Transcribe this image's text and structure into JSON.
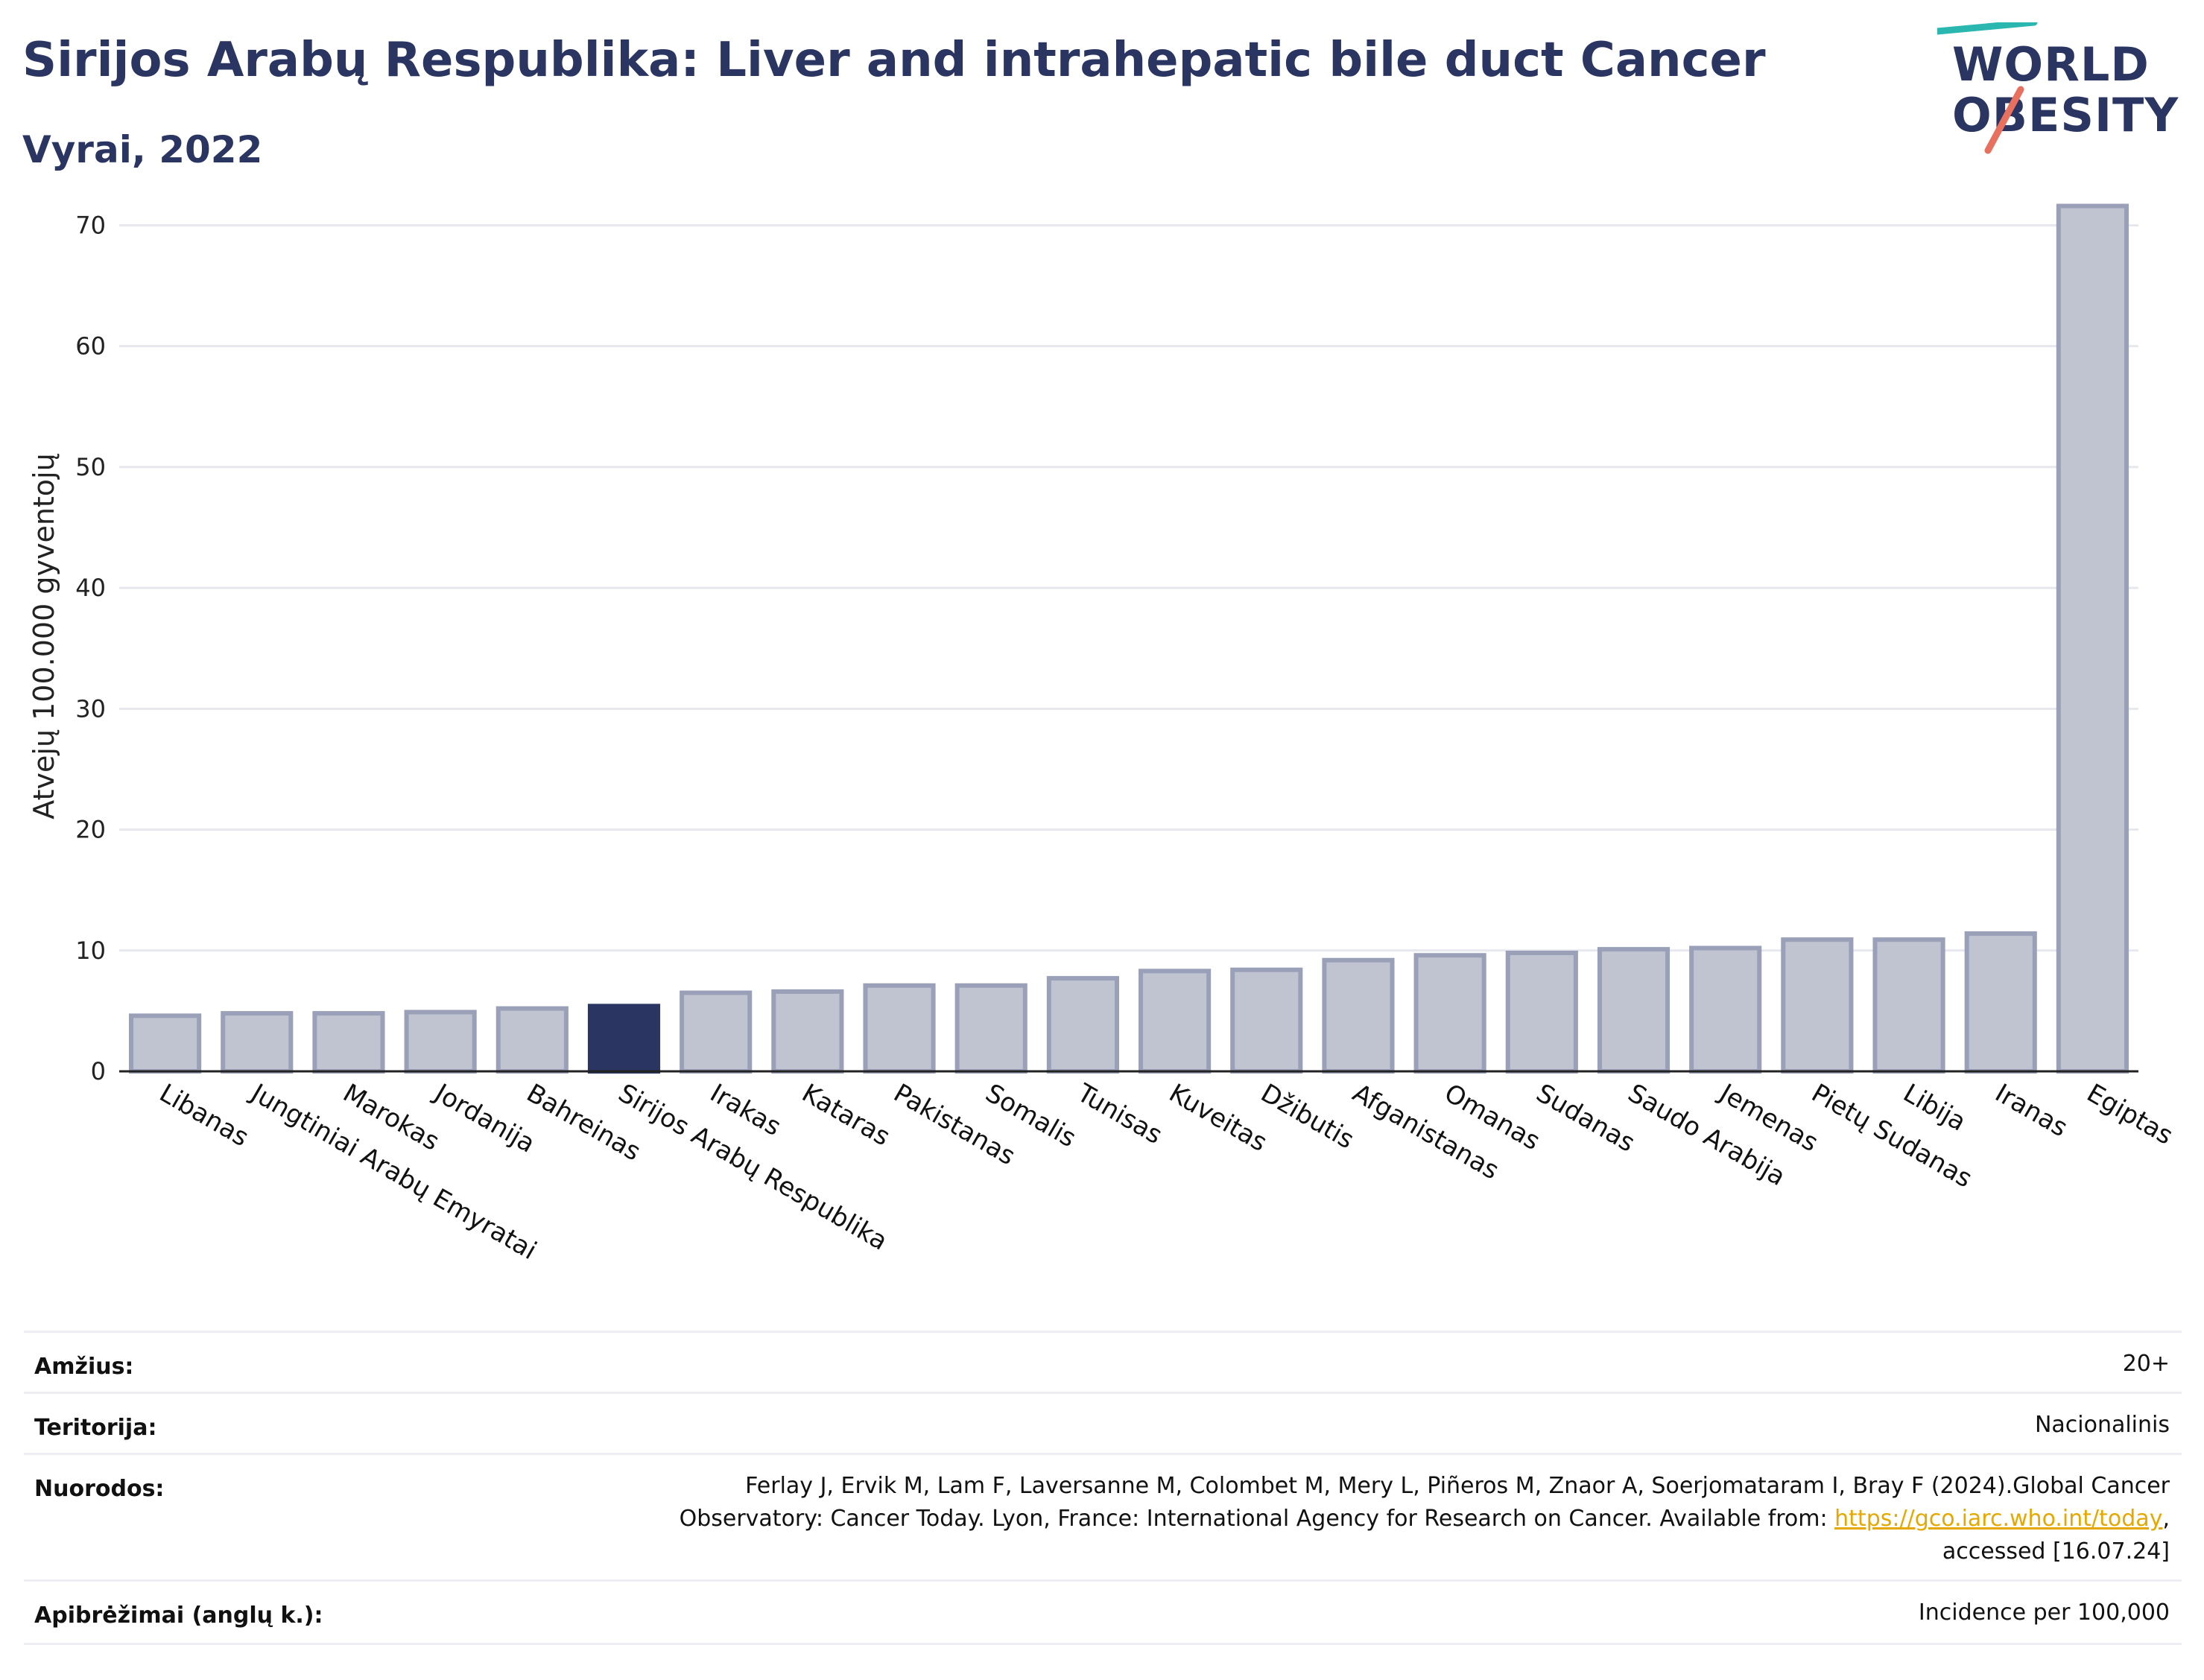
{
  "title": "Sirijos Arabų Respublika: Liver and intrahepatic bile duct Cancer",
  "subtitle": "Vyrai, 2022",
  "logo": {
    "line1": "WORLD",
    "line2": "OBESITY"
  },
  "colors": {
    "highlight": "#2a3561",
    "bar": "#c0c3d0",
    "bar_edge": "#9aa0b8",
    "teal": "#2ab7b0",
    "coral": "#e8705f"
  },
  "chart_data": {
    "type": "bar",
    "ylabel": "Atvejų 100.000 gyventojų",
    "ylim": [
      0,
      72
    ],
    "yticks": [
      0,
      10,
      20,
      30,
      40,
      50,
      60,
      70
    ],
    "grid": true,
    "highlight": "Sirijos Arabų Respublika",
    "categories": [
      "Libanas",
      "Jungtiniai Arabų Emyratai",
      "Marokas",
      "Jordanija",
      "Bahreinas",
      "Sirijos Arabų Respublika",
      "Irakas",
      "Kataras",
      "Pakistanas",
      "Somalis",
      "Tunisas",
      "Kuveitas",
      "Džibutis",
      "Afganistanas",
      "Omanas",
      "Sudanas",
      "Saudo Arabija",
      "Jemenas",
      "Pietų Sudanas",
      "Libija",
      "Iranas",
      "Egiptas"
    ],
    "values": [
      4.6,
      4.8,
      4.8,
      4.9,
      5.2,
      5.4,
      6.5,
      6.6,
      7.1,
      7.1,
      7.7,
      8.3,
      8.4,
      9.2,
      9.6,
      9.8,
      10.1,
      10.2,
      10.9,
      10.9,
      11.4,
      71.6
    ]
  },
  "meta": {
    "age_label": "Amžius:",
    "age_value": "20+",
    "territory_label": "Teritorija:",
    "territory_value": "Nacionalinis",
    "refs_label": "Nuorodos:",
    "refs_line1": "Ferlay J, Ervik M, Lam F, Laversanne M, Colombet M, Mery L, Piñeros M, Znaor A, Soerjomataram I, Bray F (2024).Global Cancer",
    "refs_line2": "Observatory: Cancer Today. Lyon, France: International Agency for Research on Cancer. Available from: ",
    "refs_link": "https://gco.iarc.who.int/today",
    "refs_line2_end": ",",
    "refs_line3": "accessed [16.07.24]",
    "def_label": "Apibrėžimai (anglų k.):",
    "def_value": "Incidence per 100,000"
  }
}
